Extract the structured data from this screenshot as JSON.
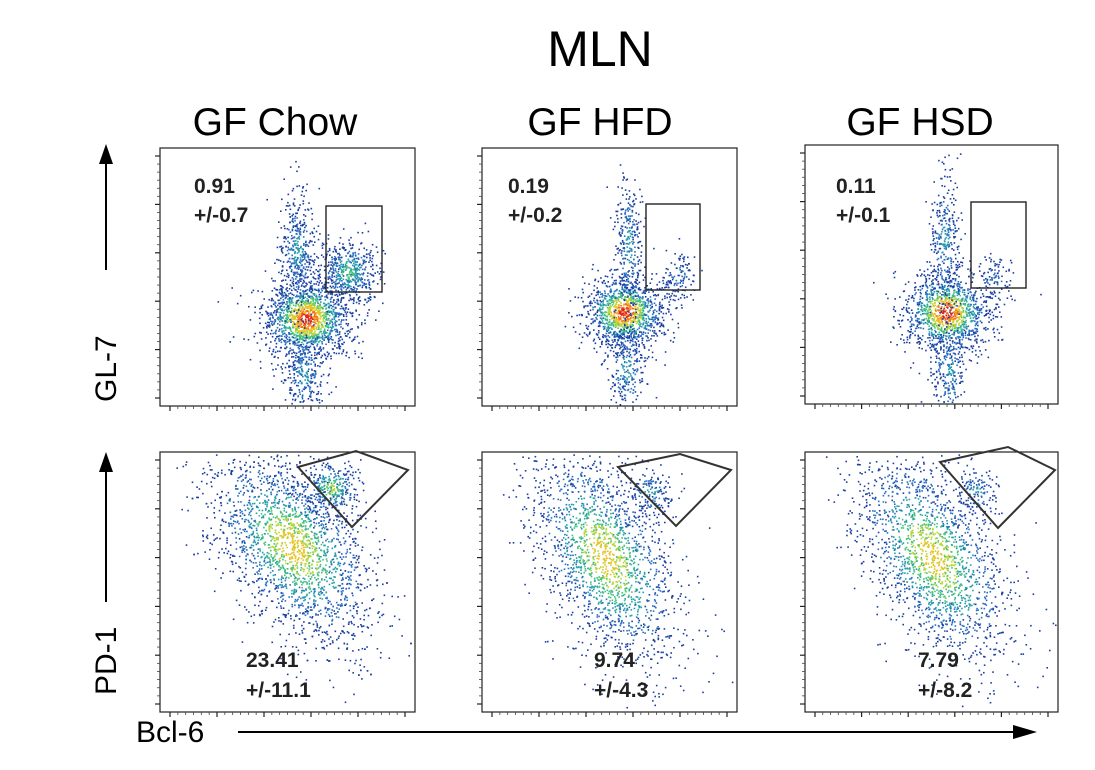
{
  "chart_data": {
    "type": "scatter",
    "title": "MLN",
    "groups": [
      "GF Chow",
      "GF HFD",
      "GF HSD"
    ],
    "rows": [
      {
        "ylabel": "GL-7",
        "stats": [
          {
            "value": "0.91",
            "sd": "+/-0.7"
          },
          {
            "value": "0.19",
            "sd": "+/-0.2"
          },
          {
            "value": "0.11",
            "sd": "+/-0.1"
          }
        ]
      },
      {
        "ylabel": "PD-1",
        "stats": [
          {
            "value": "23.41",
            "sd": "+/-11.1"
          },
          {
            "value": "9.74",
            "sd": "+/-4.3"
          },
          {
            "value": "7.79",
            "sd": "+/-8.2"
          }
        ]
      }
    ],
    "xlabel": "Bcl-6",
    "colormap": [
      "#1a3fa0",
      "#2a6fc0",
      "#25a0a8",
      "#48c27c",
      "#b8d63c",
      "#f0c020",
      "#f07020",
      "#e02020"
    ],
    "gate_color": "#222222"
  }
}
